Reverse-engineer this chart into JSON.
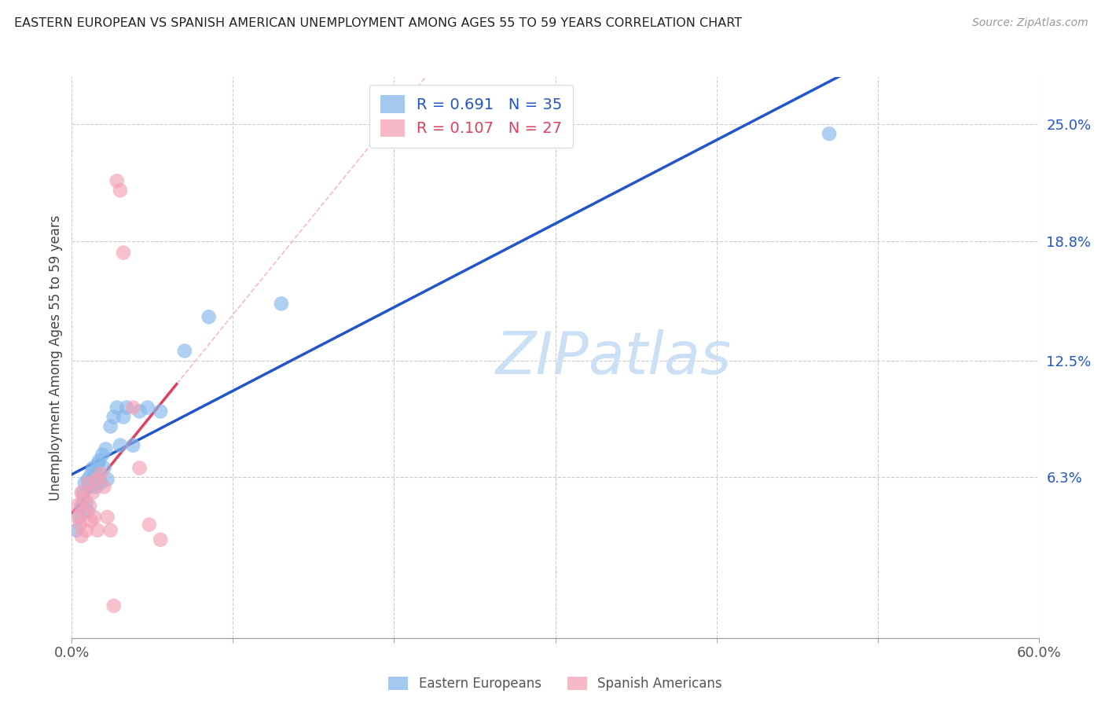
{
  "title": "EASTERN EUROPEAN VS SPANISH AMERICAN UNEMPLOYMENT AMONG AGES 55 TO 59 YEARS CORRELATION CHART",
  "source": "Source: ZipAtlas.com",
  "ylabel": "Unemployment Among Ages 55 to 59 years",
  "xlim": [
    0.0,
    0.6
  ],
  "ylim": [
    -0.022,
    0.275
  ],
  "xtick_positions": [
    0.0,
    0.1,
    0.2,
    0.3,
    0.4,
    0.5,
    0.6
  ],
  "xticklabels": [
    "0.0%",
    "",
    "",
    "",
    "",
    "",
    "60.0%"
  ],
  "ytick_values": [
    0.063,
    0.125,
    0.188,
    0.25
  ],
  "ytick_labels": [
    "6.3%",
    "12.5%",
    "18.8%",
    "25.0%"
  ],
  "r_eastern": "0.691",
  "n_eastern": "35",
  "r_spanish": "0.107",
  "n_spanish": "27",
  "eastern_color": "#85b8eb",
  "spanish_color": "#f5a0b5",
  "eastern_line_color": "#2255cc",
  "spanish_line_color": "#e04060",
  "eastern_dashed_color": "#b0ccf5",
  "spanish_dashed_color": "#f5bbc8",
  "grid_color": "#cccccc",
  "background_color": "#ffffff",
  "eastern_x": [
    0.003,
    0.005,
    0.006,
    0.007,
    0.008,
    0.009,
    0.01,
    0.01,
    0.011,
    0.012,
    0.013,
    0.014,
    0.015,
    0.015,
    0.016,
    0.017,
    0.018,
    0.019,
    0.02,
    0.021,
    0.022,
    0.024,
    0.026,
    0.028,
    0.03,
    0.032,
    0.034,
    0.038,
    0.042,
    0.047,
    0.055,
    0.07,
    0.085,
    0.13,
    0.47
  ],
  "eastern_y": [
    0.035,
    0.042,
    0.048,
    0.055,
    0.06,
    0.05,
    0.062,
    0.045,
    0.058,
    0.065,
    0.068,
    0.063,
    0.065,
    0.058,
    0.07,
    0.072,
    0.06,
    0.075,
    0.068,
    0.078,
    0.062,
    0.09,
    0.095,
    0.1,
    0.08,
    0.095,
    0.1,
    0.08,
    0.098,
    0.1,
    0.098,
    0.13,
    0.148,
    0.155,
    0.245
  ],
  "spanish_x": [
    0.003,
    0.004,
    0.005,
    0.006,
    0.006,
    0.007,
    0.008,
    0.009,
    0.01,
    0.011,
    0.012,
    0.013,
    0.014,
    0.015,
    0.016,
    0.018,
    0.02,
    0.022,
    0.024,
    0.026,
    0.028,
    0.03,
    0.032,
    0.038,
    0.042,
    0.048,
    0.055
  ],
  "spanish_y": [
    0.048,
    0.042,
    0.038,
    0.055,
    0.032,
    0.052,
    0.045,
    0.035,
    0.06,
    0.048,
    0.04,
    0.055,
    0.042,
    0.062,
    0.035,
    0.065,
    0.058,
    0.042,
    0.035,
    -0.005,
    0.22,
    0.215,
    0.182,
    0.1,
    0.068,
    0.038,
    0.03
  ],
  "legend_r_eastern": "R = 0.691",
  "legend_n_eastern": "N = 35",
  "legend_r_spanish": "R = 0.107",
  "legend_n_spanish": "N = 27"
}
